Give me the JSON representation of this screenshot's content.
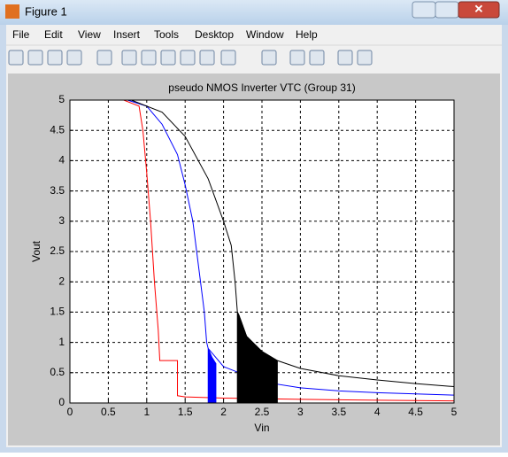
{
  "window": {
    "title": "Figure 1",
    "menu": [
      "File",
      "Edit",
      "View",
      "Insert",
      "Tools",
      "Desktop",
      "Window",
      "Help"
    ]
  },
  "chart_data": {
    "type": "line",
    "title": "pseudo NMOS Inverter VTC (Group 31)",
    "x_label": "Vin",
    "y_label": "Vout",
    "xlim": [
      0,
      5
    ],
    "ylim": [
      0,
      5
    ],
    "xticks": [
      0,
      0.5,
      1,
      1.5,
      2,
      2.5,
      3,
      3.5,
      4,
      4.5,
      5
    ],
    "yticks": [
      0,
      0.5,
      1,
      1.5,
      2,
      2.5,
      3,
      3.5,
      4,
      4.5,
      5
    ],
    "grid": true,
    "series": [
      {
        "color": "#ff0000",
        "x": [
          0,
          0.7,
          0.9,
          0.95,
          1.0,
          1.05,
          1.1,
          1.15,
          1.17,
          1.4,
          1.4,
          1.5,
          2,
          3,
          4,
          5
        ],
        "values": [
          5,
          5,
          4.9,
          4.5,
          3.8,
          3,
          2,
          1.2,
          0.7,
          0.7,
          0.12,
          0.1,
          0.08,
          0.06,
          0.045,
          0.035
        ]
      },
      {
        "color": "#0000ff",
        "x": [
          0,
          0.75,
          1.0,
          1.2,
          1.4,
          1.5,
          1.6,
          1.65,
          1.7,
          1.75,
          1.78,
          1.8,
          2,
          2.5,
          3,
          3.5,
          4,
          5
        ],
        "values": [
          5,
          5,
          4.9,
          4.6,
          4.1,
          3.6,
          3.0,
          2.5,
          2.0,
          1.5,
          1.0,
          0.9,
          0.6,
          0.35,
          0.25,
          0.2,
          0.17,
          0.13
        ]
      },
      {
        "color": "#000000",
        "x": [
          0,
          0.8,
          1.2,
          1.5,
          1.8,
          2.0,
          2.1,
          2.15,
          2.18,
          2.2,
          2.3,
          2.5,
          2.7,
          3,
          3.5,
          4,
          4.5,
          5
        ],
        "values": [
          5,
          5,
          4.8,
          4.4,
          3.7,
          3.0,
          2.6,
          2.0,
          1.5,
          1.45,
          1.1,
          0.85,
          0.7,
          0.57,
          0.45,
          0.38,
          0.32,
          0.27
        ]
      },
      {
        "color": "#0000ff",
        "fill": true,
        "x": [
          1.8,
          1.85,
          1.9
        ],
        "values": [
          0.9,
          0.75,
          0.65
        ]
      },
      {
        "color": "#000000",
        "fill": true,
        "x": [
          2.18,
          2.2,
          2.3,
          2.5,
          2.7
        ],
        "values": [
          1.5,
          1.45,
          1.1,
          0.85,
          0.7
        ]
      }
    ]
  }
}
